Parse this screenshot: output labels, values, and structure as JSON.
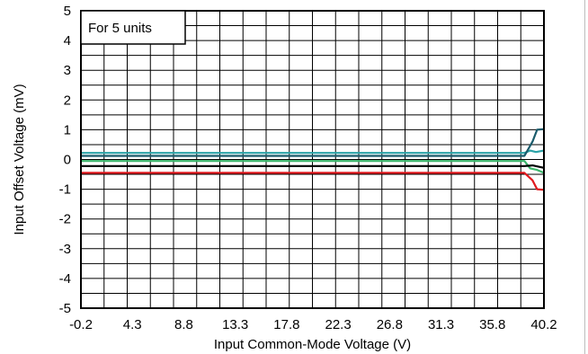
{
  "chart_data": {
    "type": "line",
    "title": "",
    "annotation": "For 5 units",
    "xlabel": "Input Common-Mode Voltage (V)",
    "ylabel": "Input Offset Voltage (mV)",
    "xlim": [
      -0.2,
      40.2
    ],
    "ylim": [
      -5,
      5
    ],
    "x_ticks": [
      "-0.2",
      "4.3",
      "8.8",
      "13.3",
      "17.8",
      "22.3",
      "26.8",
      "31.3",
      "35.8",
      "40.2"
    ],
    "y_ticks": [
      "5",
      "4",
      "3",
      "2",
      "1",
      "0",
      "-1",
      "-2",
      "-3",
      "-4",
      "-5"
    ],
    "grid": true,
    "series": [
      {
        "color": "#2ba3a8",
        "x": [
          -0.2,
          38.5,
          39.0,
          39.5,
          40.2
        ],
        "y": [
          0.22,
          0.22,
          0.3,
          0.25,
          0.3
        ]
      },
      {
        "color": "#1a5b6b",
        "x": [
          -0.2,
          38.5,
          39.2,
          39.6,
          40.2
        ],
        "y": [
          0.12,
          0.12,
          0.6,
          1.0,
          1.02
        ]
      },
      {
        "color": "#3ab56a",
        "x": [
          -0.2,
          38.5,
          39.0,
          39.6,
          40.2
        ],
        "y": [
          -0.05,
          -0.05,
          -0.3,
          -0.35,
          -0.45
        ]
      },
      {
        "color": "#000000",
        "x": [
          -0.2,
          38.5,
          39.2,
          40.2
        ],
        "y": [
          -0.22,
          -0.22,
          -0.2,
          -0.28
        ]
      },
      {
        "color": "#e0191e",
        "x": [
          -0.2,
          38.5,
          39.2,
          39.6,
          40.2
        ],
        "y": [
          -0.45,
          -0.45,
          -0.7,
          -1.0,
          -1.02
        ]
      }
    ]
  }
}
